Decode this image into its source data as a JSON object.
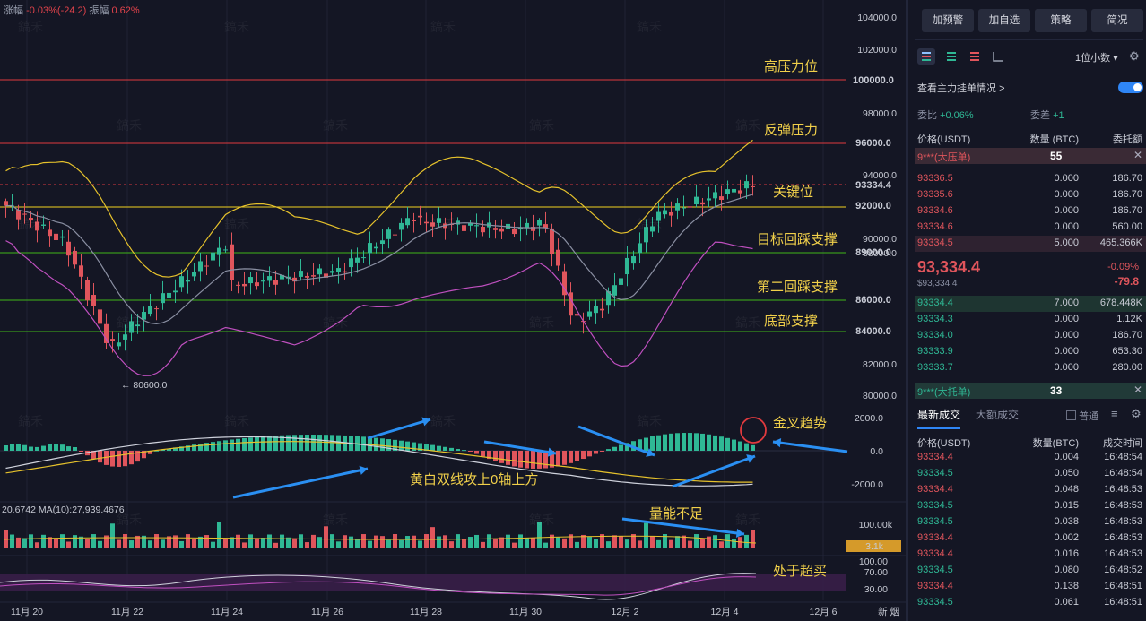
{
  "topinfo": {
    "change_label": "涨幅",
    "change_value": "-0.03%(-24.2)",
    "amp_label": "振幅",
    "amp_value": "0.62%"
  },
  "watermark": "鎬禾",
  "price_axis": [
    "104000.0",
    "102000.0",
    "98000.0",
    "94000.0",
    "90000.0",
    "88000.0",
    "82000.0",
    "80000.0"
  ],
  "price_tags": [
    {
      "label": "100000.0",
      "bg": "#e03a3e",
      "fg": "#ffffff"
    },
    {
      "label": "96000.0",
      "bg": "#e03a3e",
      "fg": "#ffffff"
    },
    {
      "label": "93334.4",
      "bg": "#d83840",
      "fg": "#ffffff"
    },
    {
      "label": "92000.0",
      "bg": "#f2d21f",
      "fg": "#111111"
    },
    {
      "label": "89000.0",
      "bg": "#3fb618",
      "fg": "#ffffff"
    },
    {
      "label": "86000.0",
      "bg": "#3fb618",
      "fg": "#ffffff"
    },
    {
      "label": "84000.0",
      "bg": "#3fb618",
      "fg": "#ffffff"
    }
  ],
  "annotations": [
    "高压力位",
    "反弹压力",
    "关键位",
    "目标回踩支撑",
    "第二回踩支撑",
    "底部支撑",
    "金叉趋势",
    "黄白双线攻上0轴上方",
    "量能不足",
    "处于超买"
  ],
  "low_label": "← 80600.0",
  "macd_axis": [
    "2000.0",
    "0.0",
    "-2000.0"
  ],
  "vol_info": "20.6742  MA(10):27,939.4676",
  "vol_axis": [
    "100.00k",
    "3.1k"
  ],
  "rsi_axis": [
    "100.00",
    "70.00",
    "30.00"
  ],
  "date_labels": [
    "11月 20",
    "11月 22",
    "11月 24",
    "11月 26",
    "11月 28",
    "11月 30",
    "12月 2",
    "12月 4",
    "12月 6"
  ],
  "bottom_corner": "新  烟",
  "panel": {
    "buttons": [
      "加预警",
      "加自选",
      "策略",
      "简况"
    ],
    "decimals": "1位小数",
    "main_orders": "查看主力挂单情况",
    "commission_ratio_label": "委比",
    "commission_ratio_value": "+0.06%",
    "commission_diff_label": "委差",
    "commission_diff_value": "+1",
    "headers": [
      "价格(USDT)",
      "数量 (BTC)",
      "委托额"
    ],
    "big_sell": {
      "label": "9***(大压单)",
      "qty": "55"
    },
    "sells": [
      [
        "93336.5",
        "0.000",
        "186.70"
      ],
      [
        "93335.6",
        "0.000",
        "186.70"
      ],
      [
        "93334.6",
        "0.000",
        "186.70"
      ],
      [
        "93334.6",
        "0.000",
        "560.00"
      ],
      [
        "93334.5",
        "5.000",
        "465.366K"
      ]
    ],
    "last_price": "93,334.4",
    "last_usd": "$93,334.4",
    "pct_change": "-0.09%",
    "abs_change": "-79.8",
    "buys": [
      [
        "93334.4",
        "7.000",
        "678.448K"
      ],
      [
        "93334.3",
        "0.000",
        "1.12K"
      ],
      [
        "93334.0",
        "0.000",
        "186.70"
      ],
      [
        "93333.9",
        "0.000",
        "653.30"
      ],
      [
        "93333.7",
        "0.000",
        "280.00"
      ]
    ],
    "big_buy": {
      "label": "9***(大托单)",
      "qty": "33"
    },
    "tabs": [
      "最新成交",
      "大额成交"
    ],
    "normal_label": "普通",
    "trade_headers": [
      "价格(USDT)",
      "数量(BTC)",
      "成交时间"
    ],
    "trades": [
      [
        "93334.4",
        "0.004",
        "16:48:54",
        "sell"
      ],
      [
        "93334.5",
        "0.050",
        "16:48:54",
        "buy"
      ],
      [
        "93334.4",
        "0.048",
        "16:48:53",
        "sell"
      ],
      [
        "93334.5",
        "0.015",
        "16:48:53",
        "buy"
      ],
      [
        "93334.5",
        "0.038",
        "16:48:53",
        "buy"
      ],
      [
        "93334.4",
        "0.002",
        "16:48:53",
        "sell"
      ],
      [
        "93334.4",
        "0.016",
        "16:48:53",
        "sell"
      ],
      [
        "93334.5",
        "0.080",
        "16:48:52",
        "buy"
      ],
      [
        "93334.4",
        "0.138",
        "16:48:51",
        "sell"
      ],
      [
        "93334.5",
        "0.061",
        "16:48:51",
        "buy"
      ]
    ]
  },
  "colors": {
    "bull": "#2fb895",
    "bear": "#e0555c",
    "boll_upper": "#e6c22c",
    "boll_lower": "#c050c0",
    "boll_mid": "#8a8fa2"
  }
}
